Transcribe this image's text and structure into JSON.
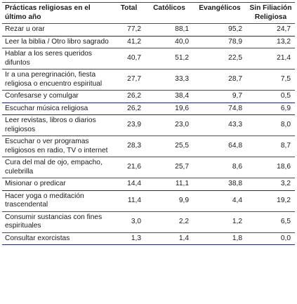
{
  "headers": [
    "Prácticas religiosas en el último año",
    "Total",
    "Católicos",
    "Evangélicos",
    "Sin Filiación Religiosa"
  ],
  "rows": [
    {
      "label": "Rezar u orar",
      "values": [
        "77,2",
        "88,1",
        "95,2",
        "24,7"
      ]
    },
    {
      "label": "Leer la biblia / Otro libro sagrado",
      "values": [
        "41,2",
        "40,0",
        "78,9",
        "13,2"
      ]
    },
    {
      "label": "Hablar a los seres queridos difuntos",
      "values": [
        "40,7",
        "51,2",
        "22,5",
        "21,4"
      ]
    },
    {
      "label": "Ir a una peregrinación, fiesta religiosa o encuentro espiritual",
      "values": [
        "27,7",
        "33,3",
        "28,7",
        "7,5"
      ]
    },
    {
      "label": "Confesarse y comulgar",
      "values": [
        "26,2",
        "38,4",
        "9,7",
        "0,5"
      ]
    },
    {
      "label": "Escuchar música religiosa",
      "values": [
        "26,2",
        "19,6",
        "74,8",
        "6,9"
      ]
    },
    {
      "label": "Leer revistas, libros o diarios religiosos",
      "values": [
        "23,9",
        "23,0",
        "43,3",
        "8,0"
      ]
    },
    {
      "label": "Escuchar o ver programas religiosos en radio, TV o internet",
      "values": [
        "28,3",
        "25,5",
        "64,8",
        "8,7"
      ]
    },
    {
      "label": "Cura del mal de ojo, empacho, culebrilla",
      "values": [
        "21,6",
        "25,7",
        "8,6",
        "18,6"
      ]
    },
    {
      "label": "Misionar o predicar",
      "values": [
        "14,4",
        "11,1",
        "38,8",
        "3,2"
      ]
    },
    {
      "label": "Hacer yoga o meditación trascendental",
      "values": [
        "11,4",
        "9,9",
        "4,4",
        "19,2"
      ]
    },
    {
      "label": "Consumir sustancias con fines espirituales",
      "values": [
        "3,0",
        "2,2",
        "1,2",
        "6,5"
      ]
    },
    {
      "label": "Consultar exorcistas",
      "values": [
        "1,3",
        "1,4",
        "1,8",
        "0,0"
      ]
    }
  ]
}
